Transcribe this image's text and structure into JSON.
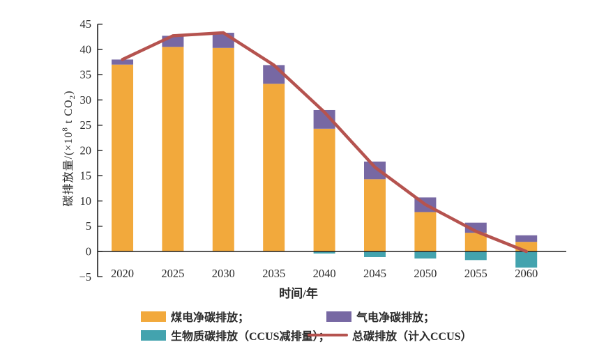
{
  "chart_data": {
    "type": "bar",
    "subtype": "stacked-bar-with-line",
    "title": "",
    "xlabel": "时间/年",
    "ylabel": "碳排放量/(×10⁸ t CO₂)",
    "ylabel_parts": {
      "prefix": "碳排放量/(×10",
      "sup": "8",
      "mid": " t CO",
      "sub": "2",
      "suffix": ")"
    },
    "categories": [
      "2020",
      "2025",
      "2030",
      "2035",
      "2040",
      "2045",
      "2050",
      "2055",
      "2060"
    ],
    "series": [
      {
        "name": "煤电净碳排放",
        "color": "#F2A93C",
        "values": [
          37.0,
          40.5,
          40.3,
          33.2,
          24.3,
          14.3,
          7.8,
          3.7,
          1.9
        ]
      },
      {
        "name": "气电净碳排放",
        "color": "#7768A3",
        "values": [
          1.0,
          2.2,
          3.0,
          3.7,
          3.7,
          3.5,
          2.9,
          2.0,
          1.3
        ]
      },
      {
        "name": "生物质碳排放（CCUS减排量）",
        "color": "#43A3AE",
        "values": [
          0,
          0,
          0,
          0,
          -0.4,
          -1.1,
          -1.4,
          -1.7,
          -3.2
        ]
      }
    ],
    "line_series": {
      "name": "总碳排放（计入CCUS）",
      "color": "#B5534F",
      "values": [
        38.0,
        42.7,
        43.3,
        36.9,
        27.6,
        16.7,
        9.3,
        4.0,
        0.0
      ]
    },
    "ylim": [
      -5,
      45
    ],
    "yticks": [
      45,
      40,
      35,
      30,
      25,
      20,
      15,
      10,
      5,
      0,
      -5
    ],
    "ytick_labels": [
      "45",
      "40",
      "35",
      "30",
      "25",
      "20",
      "15",
      "10",
      "5",
      "0",
      "−5"
    ],
    "grid": false,
    "legend_position": "bottom",
    "stacked": true
  },
  "legend": {
    "items": [
      {
        "label": "煤电净碳排放；",
        "color": "#F2A93C",
        "swatch": "rect"
      },
      {
        "label": "气电净碳排放；",
        "color": "#7768A3",
        "swatch": "rect"
      },
      {
        "label": "生物质碳排放（CCUS减排量）；",
        "color": "#43A3AE",
        "swatch": "rect"
      },
      {
        "label": "总碳排放（计入CCUS）",
        "color": "#B5534F",
        "swatch": "line"
      }
    ]
  },
  "colors": {
    "coal": "#F2A93C",
    "gas": "#7768A3",
    "biomass": "#43A3AE",
    "total_line": "#B5534F",
    "axis": "#1f1f1f",
    "background": "#ffffff"
  }
}
